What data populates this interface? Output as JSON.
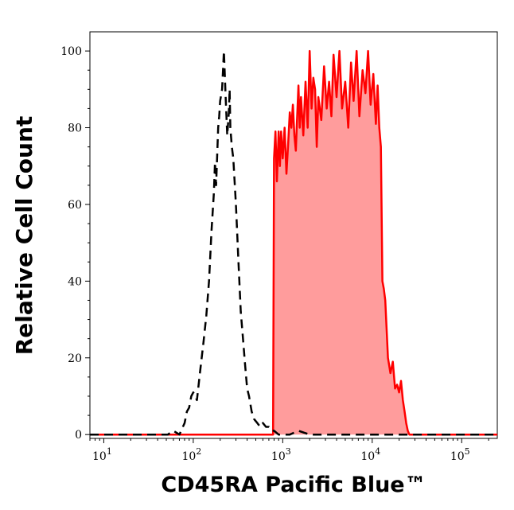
{
  "chart_data": {
    "type": "area",
    "title": "",
    "xlabel": "CD45RA Pacific Blue™",
    "ylabel": "Relative Cell Count",
    "xscale": "log",
    "xlim": [
      7,
      250000
    ],
    "ylim": [
      -1,
      105
    ],
    "yticks": [
      0,
      20,
      40,
      60,
      80,
      100
    ],
    "xticks": [
      {
        "base": "10",
        "exp": "1",
        "value": 10
      },
      {
        "base": "10",
        "exp": "2",
        "value": 100
      },
      {
        "base": "10",
        "exp": "3",
        "value": 1000
      },
      {
        "base": "10",
        "exp": "4",
        "value": 10000
      },
      {
        "base": "10",
        "exp": "5",
        "value": 100000
      }
    ],
    "grid": false,
    "legend": "none",
    "series": [
      {
        "style": "dashed",
        "color": "#000000",
        "fill": "none",
        "x": [
          7,
          40,
          52,
          60,
          70,
          80,
          85,
          90,
          95,
          100,
          110,
          120,
          130,
          140,
          150,
          160,
          170,
          175,
          180,
          190,
          195,
          200,
          210,
          215,
          220,
          230,
          240,
          250,
          255,
          260,
          270,
          280,
          300,
          320,
          340,
          360,
          380,
          400,
          420,
          450,
          480,
          520,
          560,
          600,
          650,
          700,
          750,
          800,
          900,
          1200,
          1500,
          2000,
          3000,
          4000,
          6000,
          250000
        ],
        "y": [
          0,
          0,
          0,
          1,
          0,
          3,
          6,
          7,
          10,
          11,
          9,
          17,
          24,
          31,
          40,
          53,
          63,
          71,
          65,
          80,
          83,
          87,
          90,
          95,
          100,
          88,
          78,
          84,
          90,
          80,
          75,
          72,
          60,
          45,
          32,
          25,
          18,
          12,
          10,
          6,
          4,
          3,
          2,
          3,
          2,
          2,
          1,
          1,
          0,
          0,
          1,
          0,
          0,
          0,
          0,
          0
        ]
      },
      {
        "style": "solid",
        "color": "#ff0000",
        "fill": "#ff9c9c",
        "x": [
          7,
          600,
          750,
          780,
          800,
          830,
          860,
          900,
          930,
          960,
          1000,
          1050,
          1100,
          1150,
          1200,
          1250,
          1300,
          1350,
          1400,
          1450,
          1500,
          1550,
          1600,
          1700,
          1800,
          1900,
          2000,
          2100,
          2200,
          2300,
          2400,
          2500,
          2700,
          2900,
          3100,
          3300,
          3500,
          3700,
          4000,
          4300,
          4600,
          5000,
          5400,
          5800,
          6200,
          6700,
          7200,
          7800,
          8400,
          9000,
          9600,
          10300,
          11000,
          11500,
          12000,
          12500,
          13000,
          13500,
          14000,
          15000,
          16000,
          17000,
          18000,
          19000,
          20000,
          21000,
          22000,
          23000,
          24000,
          25000,
          26000,
          30000,
          250000
        ],
        "y": [
          0,
          0,
          0,
          0,
          72,
          79,
          66,
          79,
          70,
          79,
          72,
          80,
          68,
          76,
          84,
          80,
          86,
          78,
          74,
          83,
          91,
          80,
          88,
          78,
          92,
          80,
          100,
          85,
          93,
          90,
          75,
          88,
          82,
          96,
          85,
          92,
          83,
          99,
          88,
          100,
          85,
          92,
          80,
          97,
          87,
          100,
          83,
          95,
          89,
          100,
          86,
          94,
          81,
          91,
          80,
          75,
          40,
          38,
          35,
          20,
          16,
          19,
          12,
          13,
          11,
          14,
          9,
          6,
          3,
          1,
          0,
          0,
          0
        ]
      }
    ]
  }
}
